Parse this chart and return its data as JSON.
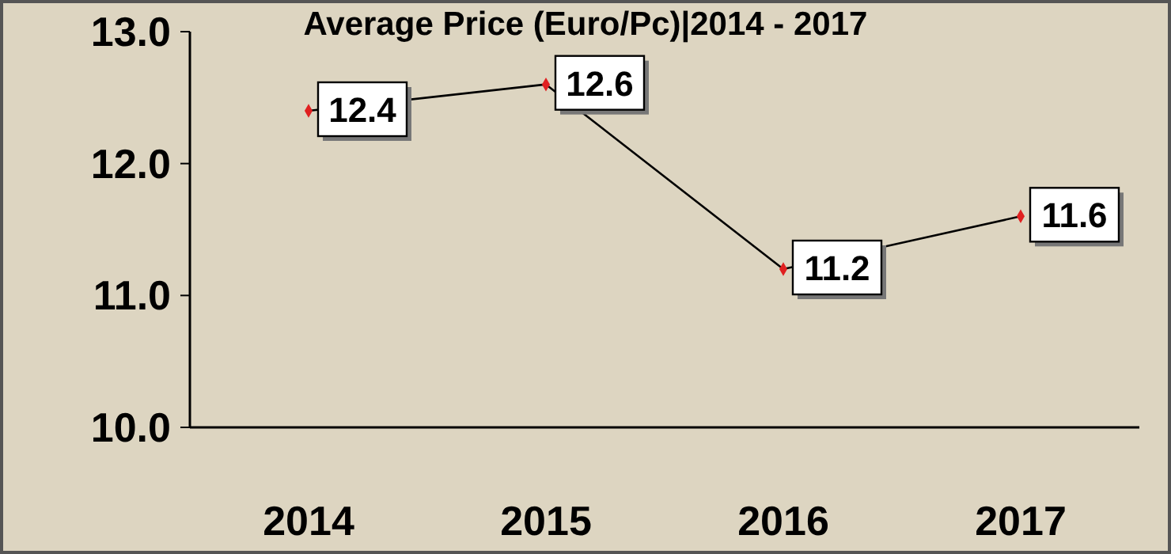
{
  "chart_data": {
    "type": "line",
    "title": "Average Price (Euro/Pc)|2014 - 2017",
    "categories": [
      "2014",
      "2015",
      "2016",
      "2017"
    ],
    "series": [
      {
        "color": "#000000",
        "values": [
          12.4,
          12.6,
          11.2,
          11.6
        ]
      }
    ],
    "ylim": [
      10,
      13
    ],
    "yticks": [
      {
        "value": 10,
        "label": "10.0"
      },
      {
        "value": 11,
        "label": "11.0"
      },
      {
        "value": 12,
        "label": "12.0"
      },
      {
        "value": 13,
        "label": "13.0"
      }
    ],
    "marker": "diamond",
    "data_labels": true
  }
}
